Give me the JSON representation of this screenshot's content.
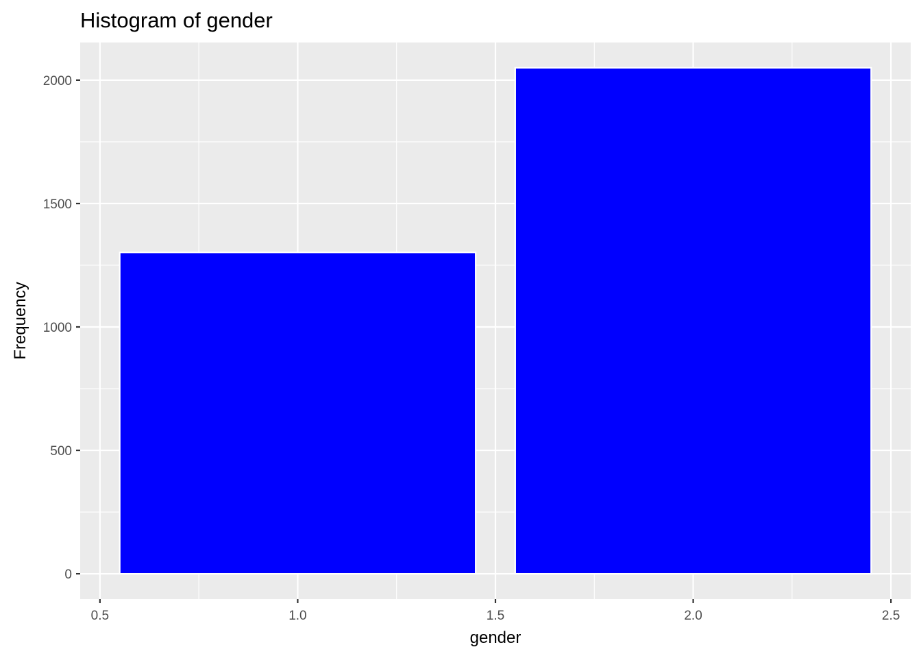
{
  "chart_data": {
    "type": "bar",
    "title": "Histogram of gender",
    "xlabel": "gender",
    "ylabel": "Frequency",
    "bins": [
      {
        "x_start": 0.55,
        "x_end": 1.45,
        "value": 1302
      },
      {
        "x_start": 1.55,
        "x_end": 2.45,
        "value": 2050
      }
    ],
    "xlim": [
      0.45,
      2.55
    ],
    "ylim": [
      -102.5,
      2152.5
    ],
    "x_ticks": [
      {
        "value": 0.5,
        "label": "0.5"
      },
      {
        "value": 1.0,
        "label": "1.0"
      },
      {
        "value": 1.5,
        "label": "1.5"
      },
      {
        "value": 2.0,
        "label": "2.0"
      },
      {
        "value": 2.5,
        "label": "2.5"
      }
    ],
    "x_minor_ticks": [
      0.75,
      1.25,
      1.75,
      2.25
    ],
    "y_ticks": [
      {
        "value": 0,
        "label": "0"
      },
      {
        "value": 500,
        "label": "500"
      },
      {
        "value": 1000,
        "label": "1000"
      },
      {
        "value": 1500,
        "label": "1500"
      },
      {
        "value": 2000,
        "label": "2000"
      }
    ],
    "y_minor_ticks": [
      250,
      750,
      1250,
      1750
    ],
    "grid": true,
    "legend": "none",
    "colors": {
      "bar_fill": "#0000ff",
      "bar_outline": "#ffffff",
      "panel_background": "#ebebeb",
      "grid": "#ffffff",
      "tick_text": "#4d4d4d",
      "axis_ticks": "#333333"
    }
  }
}
